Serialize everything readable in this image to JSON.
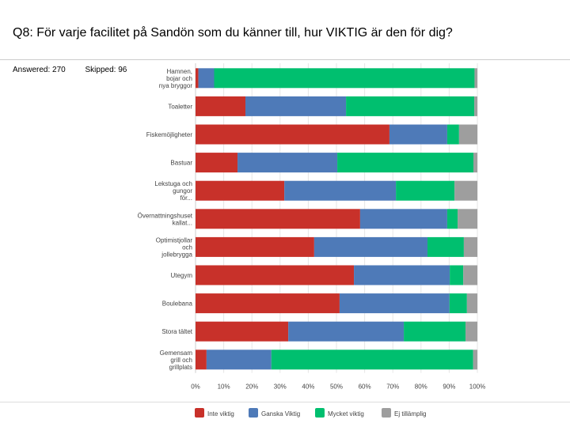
{
  "title": "Q8: För varje facilitet på Sandön som du känner till, hur VIKTIG är den för dig?",
  "answered": "Answered: 270",
  "skipped": "Skipped: 96",
  "chart_data": {
    "type": "bar",
    "orientation": "horizontal",
    "stacked": true,
    "categories": [
      "Hamnen, bojar och nya bryggor",
      "Toaletter",
      "Fiskemöjligheter",
      "Bastuar",
      "Lekstuga och gungor för...",
      "Övernattningshuset kallat...",
      "Optimistjollar och jollebrygga",
      "Utegym",
      "Boulebana",
      "Stora tältet",
      "Gemensam grill och grillplats"
    ],
    "series": [
      {
        "name": "Inte viktig",
        "color": "#c8312a",
        "values": [
          1.0,
          17.7,
          68.8,
          14.9,
          31.5,
          58.4,
          42.1,
          56.2,
          51.1,
          32.9,
          3.9
        ]
      },
      {
        "name": "Ganska Viktig",
        "color": "#4e7ab8",
        "values": [
          5.6,
          35.7,
          20.5,
          35.4,
          39.6,
          30.9,
          40.2,
          34.0,
          39.0,
          41.0,
          23.0
        ]
      },
      {
        "name": "Mycket viktig",
        "color": "#00bf6f",
        "values": [
          92.4,
          45.5,
          4.2,
          48.3,
          20.8,
          3.7,
          12.9,
          4.8,
          6.2,
          21.9,
          71.6
        ]
      },
      {
        "name": "Ej tillämplig",
        "color": "#9e9e9e",
        "values": [
          1.0,
          1.1,
          6.5,
          1.4,
          8.1,
          7.0,
          4.8,
          5.0,
          3.7,
          4.2,
          1.5
        ]
      }
    ],
    "xticks": [
      "0%",
      "10%",
      "20%",
      "30%",
      "40%",
      "50%",
      "60%",
      "70%",
      "80%",
      "90%",
      "100%"
    ],
    "xlim": [
      0,
      100
    ],
    "grid": true,
    "legend": "bottom"
  }
}
